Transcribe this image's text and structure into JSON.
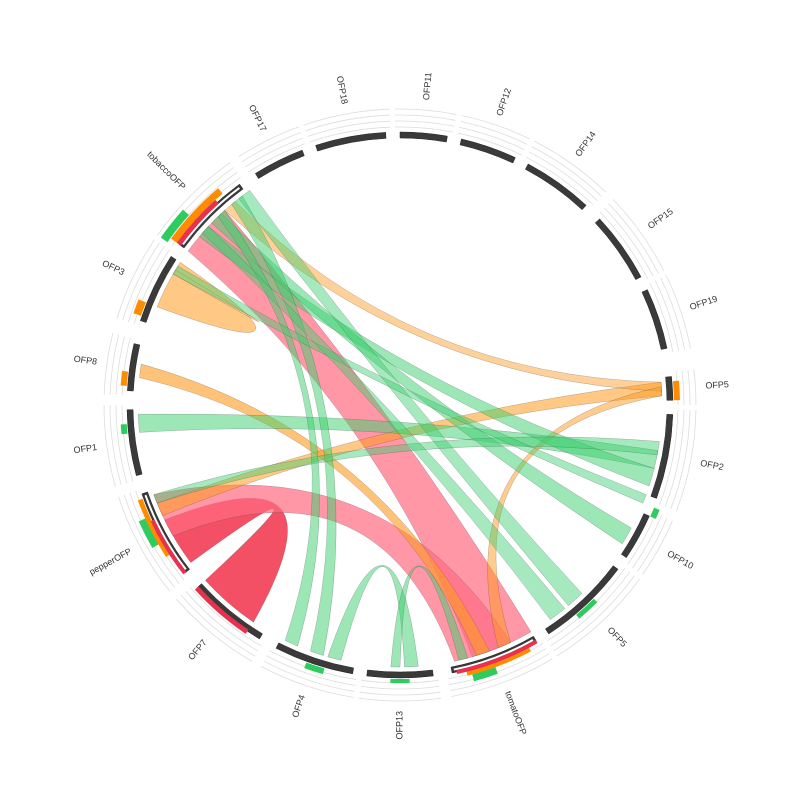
{
  "segments": [
    {
      "label": "OFP11"
    },
    {
      "label": "OFP12"
    },
    {
      "label": "OFP14"
    },
    {
      "label": "OFP15"
    },
    {
      "label": "OFP19"
    },
    {
      "label": "OFP5"
    },
    {
      "label": "OFP2"
    },
    {
      "label": "OFP10"
    },
    {
      "label": "OFP5"
    },
    {
      "label": "tomatoOFP"
    },
    {
      "label": "OFP13"
    },
    {
      "label": "OFP4"
    },
    {
      "label": "OFP7"
    },
    {
      "label": "pepperOFP"
    },
    {
      "label": "OFP1"
    },
    {
      "label": "OFP8"
    },
    {
      "label": "OFP3"
    },
    {
      "label": "tobaccoOFP"
    },
    {
      "label": "OFP17"
    },
    {
      "label": "OFP18"
    }
  ]
}
